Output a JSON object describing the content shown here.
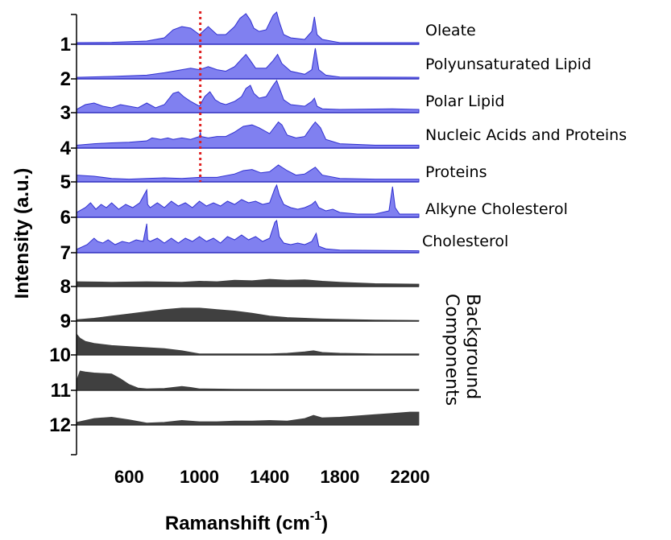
{
  "chart_data": {
    "type": "area",
    "xlabel": "Ramanshift (cm",
    "xlabel_sup": "-1",
    "xlabel_close": ")",
    "ylabel": "Intensity (a.u.)",
    "xlim": [
      300,
      2250
    ],
    "xticks": [
      600,
      1000,
      1400,
      1800,
      2200
    ],
    "reference_line": {
      "x": 1005,
      "color": "#e02020",
      "style": "dotted"
    },
    "group_label": [
      "Background",
      "Components"
    ],
    "colors": {
      "component": "#8080f0",
      "component_stroke": "#3030d0",
      "background": "#404040"
    },
    "series": [
      {
        "number": "1",
        "name": "Oleate",
        "kind": "component",
        "x": [
          300,
          500,
          700,
          800,
          850,
          900,
          950,
          1000,
          1050,
          1080,
          1100,
          1150,
          1200,
          1230,
          1265,
          1290,
          1310,
          1340,
          1380,
          1420,
          1440,
          1455,
          1480,
          1520,
          1600,
          1640,
          1655,
          1670,
          1700,
          1750,
          1800,
          2250
        ],
        "y": [
          0.05,
          0.06,
          0.1,
          0.2,
          0.45,
          0.55,
          0.5,
          0.3,
          0.55,
          0.4,
          0.3,
          0.3,
          0.55,
          0.8,
          0.95,
          0.75,
          0.5,
          0.4,
          0.45,
          0.9,
          1.0,
          0.7,
          0.3,
          0.2,
          0.15,
          0.4,
          0.85,
          0.3,
          0.15,
          0.1,
          0.05,
          0.05
        ]
      },
      {
        "number": "2",
        "name": "Polyunsaturated Lipid",
        "kind": "component",
        "x": [
          300,
          500,
          700,
          800,
          900,
          950,
          1000,
          1050,
          1100,
          1150,
          1200,
          1240,
          1265,
          1290,
          1320,
          1380,
          1420,
          1445,
          1470,
          1520,
          1600,
          1640,
          1660,
          1680,
          1720,
          1800,
          2250
        ],
        "y": [
          0.05,
          0.08,
          0.12,
          0.2,
          0.3,
          0.35,
          0.3,
          0.4,
          0.3,
          0.25,
          0.4,
          0.65,
          0.8,
          0.6,
          0.35,
          0.35,
          0.6,
          0.8,
          0.5,
          0.25,
          0.15,
          0.3,
          1.0,
          0.3,
          0.12,
          0.06,
          0.05
        ]
      },
      {
        "number": "3",
        "name": "Polar Lipid",
        "kind": "component",
        "x": [
          300,
          350,
          400,
          450,
          500,
          550,
          600,
          650,
          700,
          750,
          800,
          850,
          880,
          910,
          950,
          1000,
          1030,
          1060,
          1090,
          1120,
          1150,
          1200,
          1240,
          1265,
          1290,
          1310,
          1340,
          1380,
          1420,
          1440,
          1460,
          1480,
          1520,
          1600,
          1640,
          1655,
          1670,
          1700,
          1800,
          2100,
          2250
        ],
        "y": [
          0.1,
          0.25,
          0.3,
          0.2,
          0.15,
          0.25,
          0.2,
          0.15,
          0.3,
          0.15,
          0.25,
          0.6,
          0.65,
          0.5,
          0.35,
          0.2,
          0.5,
          0.65,
          0.4,
          0.3,
          0.25,
          0.35,
          0.5,
          0.75,
          0.85,
          0.6,
          0.45,
          0.5,
          0.85,
          1.0,
          0.7,
          0.4,
          0.25,
          0.2,
          0.35,
          0.45,
          0.2,
          0.12,
          0.1,
          0.12,
          0.1
        ]
      },
      {
        "number": "4",
        "name": "Nucleic Acids and Proteins",
        "kind": "component",
        "x": [
          300,
          400,
          500,
          600,
          700,
          730,
          780,
          820,
          850,
          900,
          950,
          1000,
          1005,
          1010,
          1050,
          1100,
          1150,
          1200,
          1250,
          1300,
          1340,
          1400,
          1450,
          1470,
          1500,
          1550,
          1600,
          1640,
          1660,
          1690,
          1720,
          1800,
          2000,
          2250
        ],
        "y": [
          0.1,
          0.15,
          0.18,
          0.2,
          0.25,
          0.35,
          0.3,
          0.35,
          0.3,
          0.35,
          0.3,
          0.4,
          0.55,
          0.4,
          0.35,
          0.4,
          0.4,
          0.55,
          0.75,
          0.8,
          0.7,
          0.5,
          0.9,
          0.8,
          0.45,
          0.35,
          0.4,
          0.75,
          0.9,
          0.7,
          0.3,
          0.15,
          0.1,
          0.1
        ]
      },
      {
        "number": "5",
        "name": "Proteins",
        "kind": "component",
        "x": [
          300,
          400,
          500,
          600,
          700,
          800,
          900,
          1000,
          1005,
          1010,
          1100,
          1200,
          1250,
          1300,
          1350,
          1400,
          1450,
          1500,
          1550,
          1600,
          1640,
          1660,
          1700,
          1800,
          2000,
          2250
        ],
        "y": [
          0.3,
          0.25,
          0.15,
          0.12,
          0.15,
          0.18,
          0.15,
          0.2,
          0.3,
          0.2,
          0.2,
          0.35,
          0.5,
          0.55,
          0.4,
          0.45,
          0.75,
          0.5,
          0.3,
          0.35,
          0.55,
          0.65,
          0.3,
          0.15,
          0.12,
          0.12
        ]
      },
      {
        "number": "6",
        "name": "Alkyne Cholesterol",
        "kind": "component",
        "x": [
          300,
          350,
          380,
          410,
          440,
          470,
          500,
          540,
          580,
          620,
          660,
          700,
          705,
          720,
          760,
          800,
          840,
          880,
          920,
          960,
          1000,
          1040,
          1080,
          1120,
          1160,
          1200,
          1240,
          1280,
          1320,
          1360,
          1400,
          1430,
          1440,
          1455,
          1480,
          1520,
          1560,
          1600,
          1640,
          1660,
          1680,
          1720,
          1760,
          1800,
          1900,
          2000,
          2080,
          2100,
          2115,
          2140,
          2250
        ],
        "y": [
          0.15,
          0.3,
          0.45,
          0.25,
          0.4,
          0.3,
          0.45,
          0.25,
          0.4,
          0.3,
          0.45,
          0.85,
          0.4,
          0.3,
          0.45,
          0.3,
          0.5,
          0.35,
          0.45,
          0.3,
          0.5,
          0.35,
          0.45,
          0.35,
          0.5,
          0.4,
          0.55,
          0.45,
          0.5,
          0.4,
          0.45,
          0.9,
          1.0,
          0.7,
          0.4,
          0.3,
          0.25,
          0.3,
          0.4,
          0.5,
          0.3,
          0.2,
          0.25,
          0.15,
          0.1,
          0.1,
          0.2,
          0.95,
          0.3,
          0.1,
          0.1
        ]
      },
      {
        "number": "7",
        "name": "Cholesterol",
        "kind": "component",
        "x": [
          300,
          360,
          400,
          420,
          450,
          480,
          520,
          560,
          600,
          640,
          680,
          700,
          705,
          720,
          760,
          800,
          840,
          880,
          920,
          960,
          1000,
          1040,
          1080,
          1120,
          1160,
          1200,
          1240,
          1280,
          1320,
          1360,
          1400,
          1430,
          1440,
          1455,
          1480,
          1520,
          1560,
          1600,
          1640,
          1665,
          1680,
          1720,
          1800,
          2250
        ],
        "y": [
          0.1,
          0.25,
          0.45,
          0.35,
          0.3,
          0.4,
          0.25,
          0.35,
          0.3,
          0.4,
          0.35,
          0.9,
          0.4,
          0.35,
          0.45,
          0.3,
          0.45,
          0.3,
          0.45,
          0.35,
          0.5,
          0.35,
          0.45,
          0.3,
          0.5,
          0.4,
          0.55,
          0.4,
          0.5,
          0.35,
          0.45,
          0.95,
          1.0,
          0.5,
          0.3,
          0.25,
          0.3,
          0.25,
          0.35,
          0.6,
          0.2,
          0.12,
          0.08,
          0.06
        ]
      },
      {
        "number": "8",
        "name": "",
        "kind": "background",
        "x": [
          300,
          500,
          700,
          900,
          1000,
          1100,
          1200,
          1300,
          1400,
          1500,
          1600,
          1700,
          1800,
          2000,
          2250
        ],
        "y": [
          0.5,
          0.45,
          0.5,
          0.45,
          0.55,
          0.5,
          0.65,
          0.6,
          0.75,
          0.65,
          0.7,
          0.55,
          0.45,
          0.3,
          0.25
        ]
      },
      {
        "number": "9",
        "name": "",
        "kind": "background",
        "x": [
          300,
          400,
          500,
          600,
          700,
          800,
          900,
          1000,
          1100,
          1200,
          1300,
          1400,
          1500,
          1600,
          1700,
          1800,
          2000,
          2250
        ],
        "y": [
          0.1,
          0.2,
          0.35,
          0.5,
          0.65,
          0.8,
          0.9,
          0.9,
          0.8,
          0.7,
          0.55,
          0.35,
          0.25,
          0.2,
          0.15,
          0.12,
          0.08,
          0.05
        ]
      },
      {
        "number": "10",
        "name": "",
        "kind": "background",
        "x": [
          300,
          320,
          350,
          400,
          500,
          600,
          700,
          800,
          900,
          980,
          1000,
          1200,
          1400,
          1500,
          1600,
          1650,
          1700,
          1800,
          2000,
          2250
        ],
        "y": [
          1.0,
          0.8,
          0.65,
          0.55,
          0.45,
          0.4,
          0.35,
          0.3,
          0.2,
          0.08,
          0.05,
          0.05,
          0.05,
          0.08,
          0.15,
          0.2,
          0.12,
          0.08,
          0.05,
          0.05
        ]
      },
      {
        "number": "11",
        "name": "",
        "kind": "background",
        "x": [
          300,
          320,
          350,
          400,
          500,
          550,
          600,
          650,
          700,
          800,
          900,
          950,
          1000,
          1200,
          1400,
          1600,
          1800,
          2000,
          2250
        ],
        "y": [
          0.5,
          1.0,
          0.95,
          0.9,
          0.85,
          0.6,
          0.3,
          0.12,
          0.08,
          0.1,
          0.2,
          0.15,
          0.08,
          0.06,
          0.05,
          0.05,
          0.05,
          0.05,
          0.05
        ]
      },
      {
        "number": "12",
        "name": "",
        "kind": "background",
        "x": [
          300,
          400,
          500,
          600,
          700,
          800,
          900,
          1000,
          1100,
          1200,
          1300,
          1400,
          1500,
          1600,
          1650,
          1700,
          1800,
          1900,
          2000,
          2100,
          2200,
          2250
        ],
        "y": [
          0.2,
          0.5,
          0.6,
          0.4,
          0.15,
          0.2,
          0.35,
          0.25,
          0.25,
          0.3,
          0.3,
          0.35,
          0.3,
          0.5,
          0.75,
          0.55,
          0.6,
          0.7,
          0.8,
          0.9,
          1.0,
          1.0
        ]
      }
    ]
  }
}
